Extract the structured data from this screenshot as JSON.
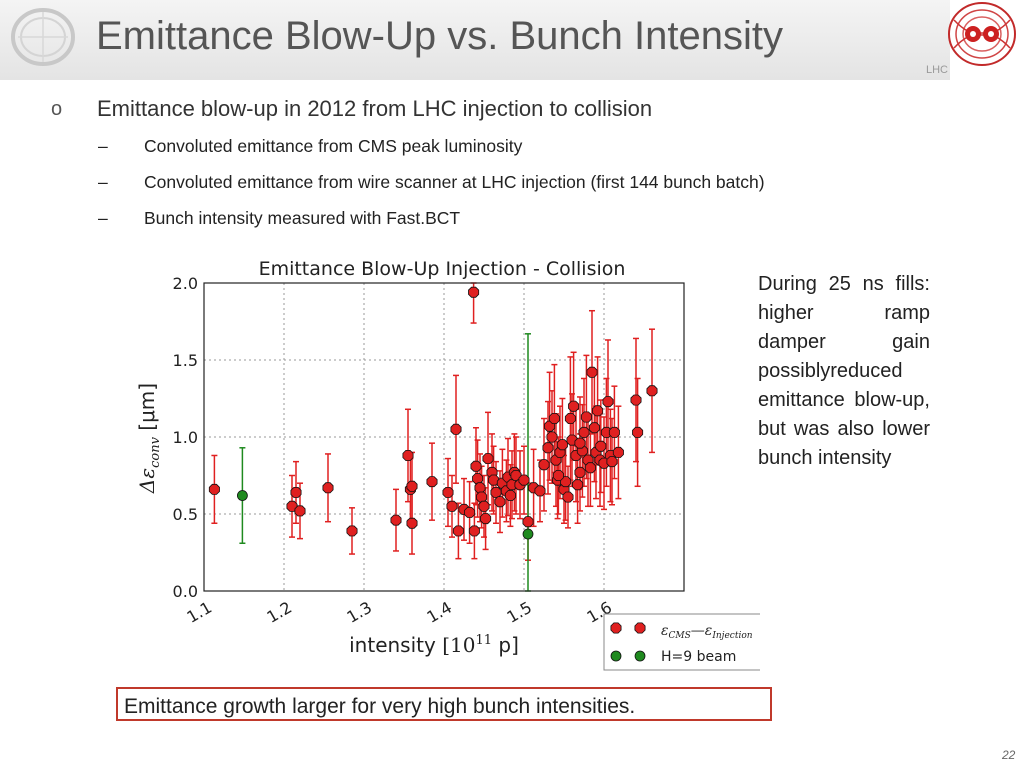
{
  "header": {
    "title": "Emittance Blow-Up vs. Bunch Intensity",
    "lhc_label": "LHC"
  },
  "content": {
    "bullet_marker": "o",
    "bullet_text": "Emittance blow-up in 2012 from LHC injection to collision",
    "sub_items": [
      {
        "dash": "–",
        "text": "Convoluted emittance from CMS peak luminosity"
      },
      {
        "dash": "–",
        "text": "Convoluted emittance from wire scanner at LHC injection (first 144 bunch batch)"
      },
      {
        "dash": "–",
        "text": "Bunch intensity measured with Fast.BCT"
      }
    ],
    "side_note": "During 25 ns fills: higher ramp damper gain possiblyreduced emittance blow-up, but was also lower bunch intensity",
    "callout": "Emittance growth larger for very high bunch intensities.",
    "page_number": "22"
  },
  "colors": {
    "red_series": "#e02020",
    "green_series": "#1f8a1f",
    "callout_border": "#c0392b"
  },
  "chart_data": {
    "type": "scatter",
    "title": "Emittance Blow-Up Injection - Collision",
    "xlabel_main": "intensity",
    "xlabel_unit": "[10",
    "xlabel_exp": "11",
    "xlabel_tail": " p]",
    "ylabel_prefix": "Δε",
    "ylabel_sub": "conv",
    "ylabel_unit": " [μm]",
    "xlim": [
      1.1,
      1.7
    ],
    "ylim": [
      0.0,
      2.0
    ],
    "x_ticks": [
      1.1,
      1.2,
      1.3,
      1.4,
      1.5,
      1.6
    ],
    "x_tick_labels": [
      "1.1",
      "1.2",
      "1.3",
      "1.4",
      "1.5",
      "1.6"
    ],
    "y_ticks": [
      0.0,
      0.5,
      1.0,
      1.5,
      2.0
    ],
    "y_tick_labels": [
      "0.0",
      "0.5",
      "1.0",
      "1.5",
      "2.0"
    ],
    "grid": true,
    "legend_position": "bottom-right outside",
    "legend": [
      {
        "series": "cms",
        "label": "ε",
        "sub1": "CMS",
        "mid": "—ε",
        "sub2": "Injection"
      },
      {
        "series": "h9",
        "label": "H=9 beam",
        "sub1": "",
        "mid": "",
        "sub2": ""
      }
    ],
    "series": [
      {
        "id": "cms",
        "points": [
          [
            1.113,
            0.66,
            0.22
          ],
          [
            1.21,
            0.55,
            0.2
          ],
          [
            1.215,
            0.64,
            0.2
          ],
          [
            1.22,
            0.52,
            0.18
          ],
          [
            1.255,
            0.67,
            0.22
          ],
          [
            1.285,
            0.39,
            0.15
          ],
          [
            1.34,
            0.46,
            0.2
          ],
          [
            1.355,
            0.88,
            0.3
          ],
          [
            1.358,
            0.66,
            0.2
          ],
          [
            1.36,
            0.68,
            0.22
          ],
          [
            1.36,
            0.44,
            0.2
          ],
          [
            1.385,
            0.71,
            0.25
          ],
          [
            1.405,
            0.64,
            0.22
          ],
          [
            1.41,
            0.55,
            0.2
          ],
          [
            1.415,
            1.05,
            0.35
          ],
          [
            1.418,
            0.39,
            0.18
          ],
          [
            1.425,
            0.53,
            0.2
          ],
          [
            1.432,
            0.51,
            0.2
          ],
          [
            1.437,
            1.94,
            0.2
          ],
          [
            1.438,
            0.39,
            0.18
          ],
          [
            1.44,
            0.81,
            0.25
          ],
          [
            1.442,
            0.73,
            0.25
          ],
          [
            1.445,
            0.67,
            0.22
          ],
          [
            1.447,
            0.61,
            0.2
          ],
          [
            1.45,
            0.55,
            0.2
          ],
          [
            1.452,
            0.47,
            0.2
          ],
          [
            1.455,
            0.86,
            0.3
          ],
          [
            1.46,
            0.77,
            0.25
          ],
          [
            1.462,
            0.72,
            0.22
          ],
          [
            1.465,
            0.64,
            0.2
          ],
          [
            1.47,
            0.58,
            0.2
          ],
          [
            1.473,
            0.7,
            0.22
          ],
          [
            1.478,
            0.65,
            0.2
          ],
          [
            1.48,
            0.74,
            0.25
          ],
          [
            1.483,
            0.62,
            0.2
          ],
          [
            1.485,
            0.69,
            0.22
          ],
          [
            1.488,
            0.77,
            0.25
          ],
          [
            1.49,
            0.75,
            0.25
          ],
          [
            1.495,
            0.69,
            0.22
          ],
          [
            1.5,
            0.72,
            0.22
          ],
          [
            1.505,
            0.45,
            0.25
          ],
          [
            1.512,
            0.67,
            0.25
          ],
          [
            1.52,
            0.65,
            0.2
          ],
          [
            1.525,
            0.82,
            0.3
          ],
          [
            1.53,
            0.93,
            0.3
          ],
          [
            1.532,
            1.07,
            0.35
          ],
          [
            1.535,
            1.0,
            0.3
          ],
          [
            1.538,
            1.12,
            0.35
          ],
          [
            1.54,
            0.85,
            0.3
          ],
          [
            1.542,
            0.72,
            0.25
          ],
          [
            1.545,
            0.9,
            0.3
          ],
          [
            1.548,
            0.95,
            0.3
          ],
          [
            1.55,
            0.66,
            0.22
          ],
          [
            1.552,
            0.71,
            0.25
          ],
          [
            1.555,
            0.61,
            0.2
          ],
          [
            1.558,
            1.12,
            0.4
          ],
          [
            1.56,
            0.98,
            0.3
          ],
          [
            1.562,
            1.2,
            0.35
          ],
          [
            1.565,
            0.88,
            0.3
          ],
          [
            1.567,
            0.69,
            0.25
          ],
          [
            1.57,
            0.77,
            0.25
          ],
          [
            1.573,
            0.91,
            0.3
          ],
          [
            1.575,
            1.03,
            0.35
          ],
          [
            1.578,
            1.13,
            0.4
          ],
          [
            1.58,
            0.85,
            0.3
          ],
          [
            1.583,
            0.8,
            0.25
          ],
          [
            1.585,
            1.42,
            0.4
          ],
          [
            1.588,
            1.06,
            0.35
          ],
          [
            1.59,
            0.9,
            0.3
          ],
          [
            1.592,
            1.17,
            0.35
          ],
          [
            1.595,
            0.85,
            0.3
          ],
          [
            1.6,
            0.83,
            0.3
          ],
          [
            1.603,
            1.03,
            0.35
          ],
          [
            1.605,
            1.23,
            0.4
          ],
          [
            1.608,
            0.88,
            0.3
          ],
          [
            1.61,
            0.84,
            0.28
          ],
          [
            1.613,
            1.03,
            0.3
          ],
          [
            1.618,
            0.9,
            0.3
          ],
          [
            1.64,
            1.24,
            0.4
          ],
          [
            1.642,
            1.03,
            0.35
          ],
          [
            1.66,
            1.3,
            0.4
          ],
          [
            1.543,
            0.75,
            0.25
          ],
          [
            1.57,
            0.96,
            0.3
          ],
          [
            1.596,
            0.94,
            0.3
          ]
        ]
      },
      {
        "id": "h9",
        "points": [
          [
            1.148,
            0.62,
            0.31
          ],
          [
            1.505,
            0.37,
            1.3
          ]
        ]
      }
    ]
  }
}
